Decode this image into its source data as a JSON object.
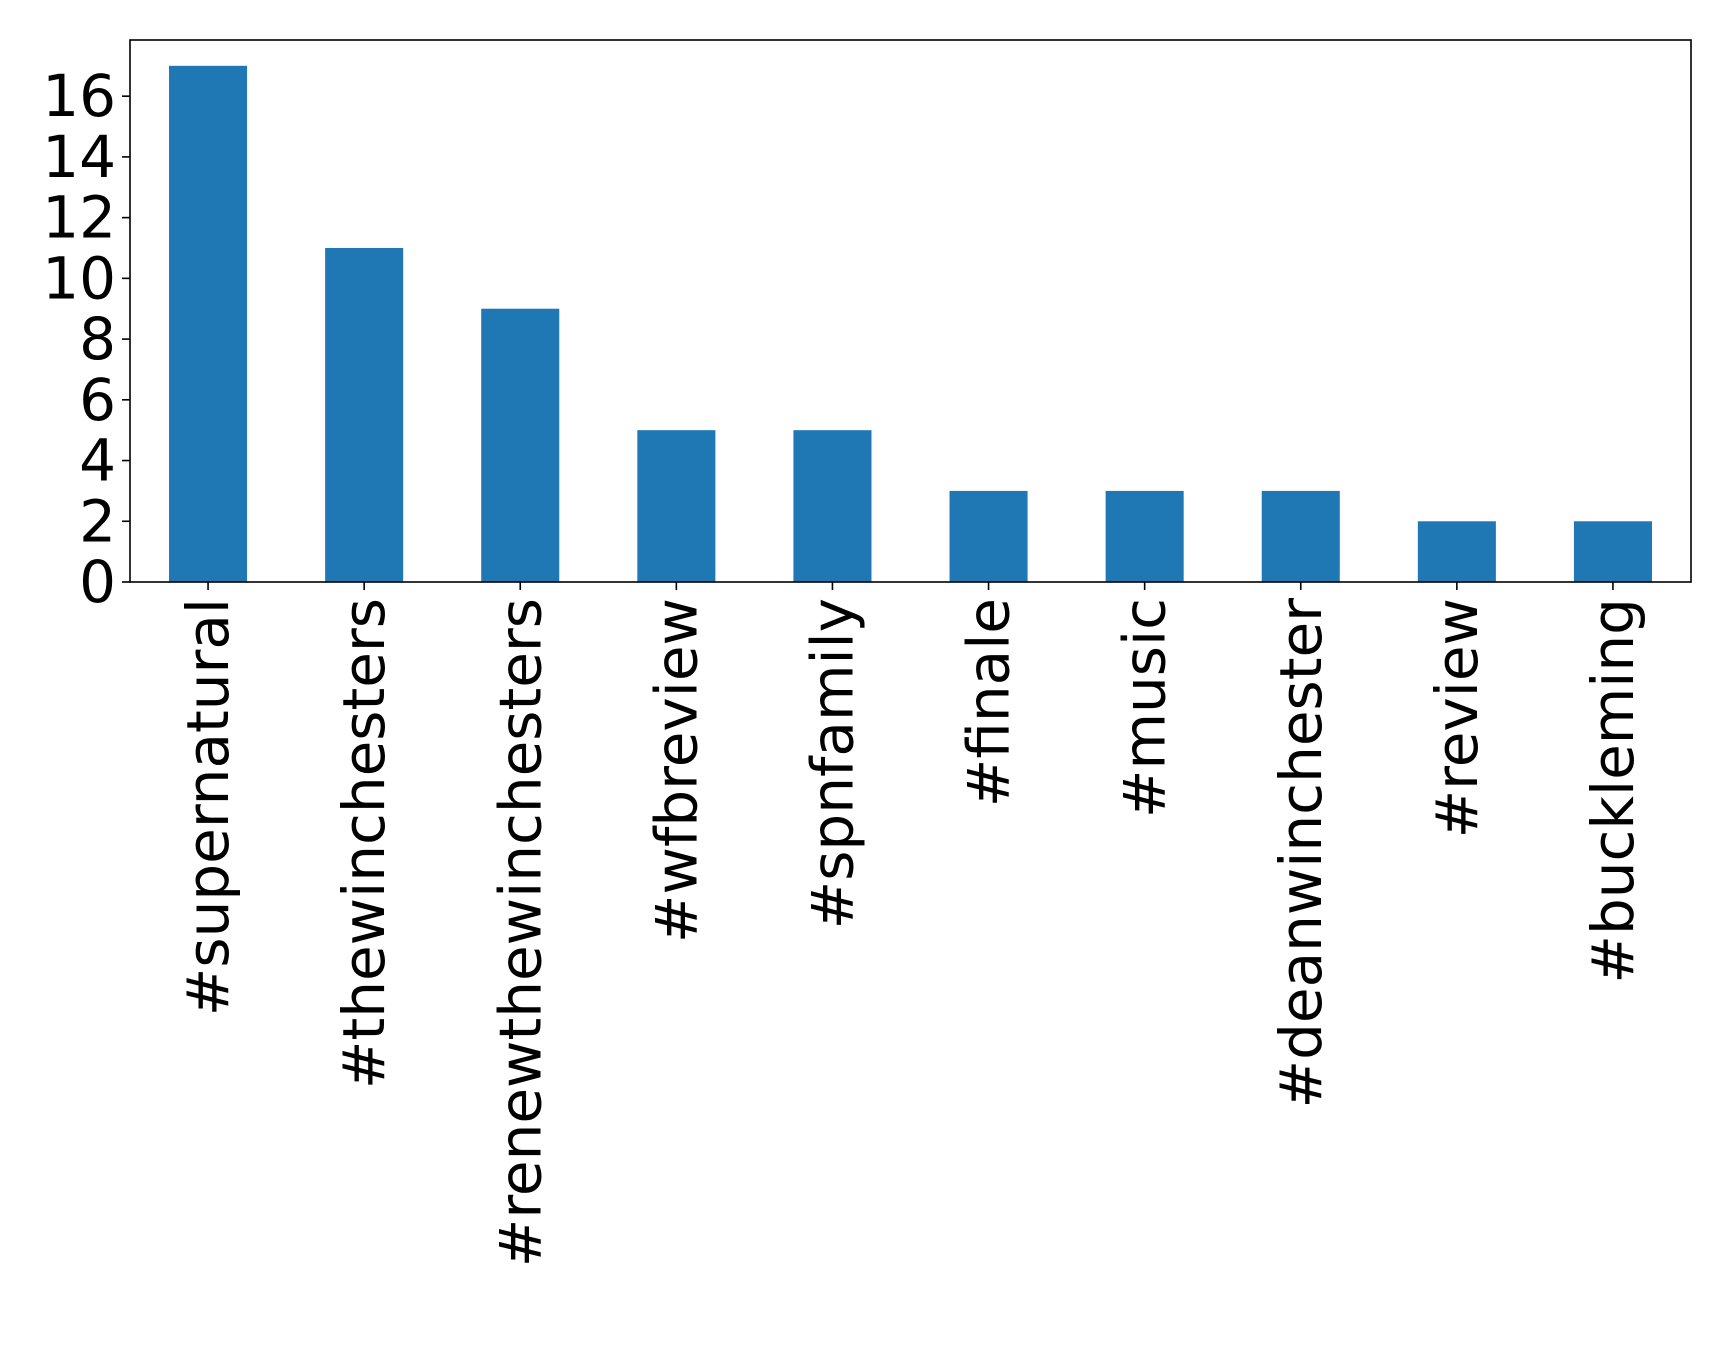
{
  "chart_data": {
    "type": "bar",
    "title": "",
    "xlabel": "",
    "ylabel": "",
    "categories": [
      "#supernatural",
      "#thewinchesters",
      "#renewthewinchesters",
      "#wfbreview",
      "#spnfamily",
      "#finale",
      "#music",
      "#deanwinchester",
      "#review",
      "#buckleming"
    ],
    "values": [
      17,
      11,
      9,
      5,
      5,
      3,
      3,
      3,
      2,
      2
    ],
    "ylim": [
      0,
      17.85
    ],
    "yticks": [
      "0",
      "2",
      "4",
      "6",
      "8",
      "10",
      "12",
      "14",
      "16"
    ],
    "grid": false,
    "legend": "none",
    "bar_color": "#1f77b4"
  }
}
